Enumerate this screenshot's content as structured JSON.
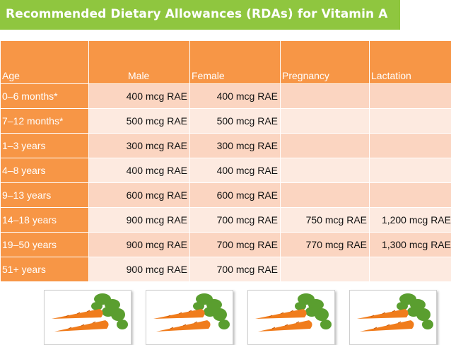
{
  "title": "Recommended Dietary Allowances (RDAs) for Vitamin A",
  "columns": [
    "Age",
    "Male",
    "Female",
    "Pregnancy",
    "Lactation"
  ],
  "rows": [
    {
      "age": "0–6 months*",
      "male": "400 mcg RAE",
      "female": "400 mcg RAE",
      "pregnancy": "",
      "lactation": ""
    },
    {
      "age": "7–12 months*",
      "male": "500 mcg RAE",
      "female": "500 mcg RAE",
      "pregnancy": "",
      "lactation": ""
    },
    {
      "age": "1–3 years",
      "male": "300 mcg RAE",
      "female": "300 mcg RAE",
      "pregnancy": "",
      "lactation": ""
    },
    {
      "age": "4–8 years",
      "male": "400 mcg RAE",
      "female": "400 mcg RAE",
      "pregnancy": "",
      "lactation": ""
    },
    {
      "age": "9–13 years",
      "male": "600 mcg RAE",
      "female": "600 mcg RAE",
      "pregnancy": "",
      "lactation": ""
    },
    {
      "age": "14–18 years",
      "male": "900 mcg RAE",
      "female": "700 mcg RAE",
      "pregnancy": "750 mcg RAE",
      "lactation": "1,200 mcg RAE"
    },
    {
      "age": "19–50 years",
      "male": "900 mcg RAE",
      "female": "700 mcg RAE",
      "pregnancy": "770 mcg RAE",
      "lactation": "1,300 mcg RAE"
    },
    {
      "age": "51+ years",
      "male": "900 mcg RAE",
      "female": "700 mcg RAE",
      "pregnancy": "",
      "lactation": ""
    }
  ],
  "colors": {
    "title_bar": "#8fc63f",
    "header_and_age_column": "#f79646",
    "row_band_dark": "#fbd5c1",
    "row_band_light": "#fdeae0",
    "carrot": "#f07c1c",
    "leaves": "#5a9e2f"
  },
  "decorations": [
    "carrot-image",
    "carrot-image",
    "carrot-image",
    "carrot-image"
  ]
}
